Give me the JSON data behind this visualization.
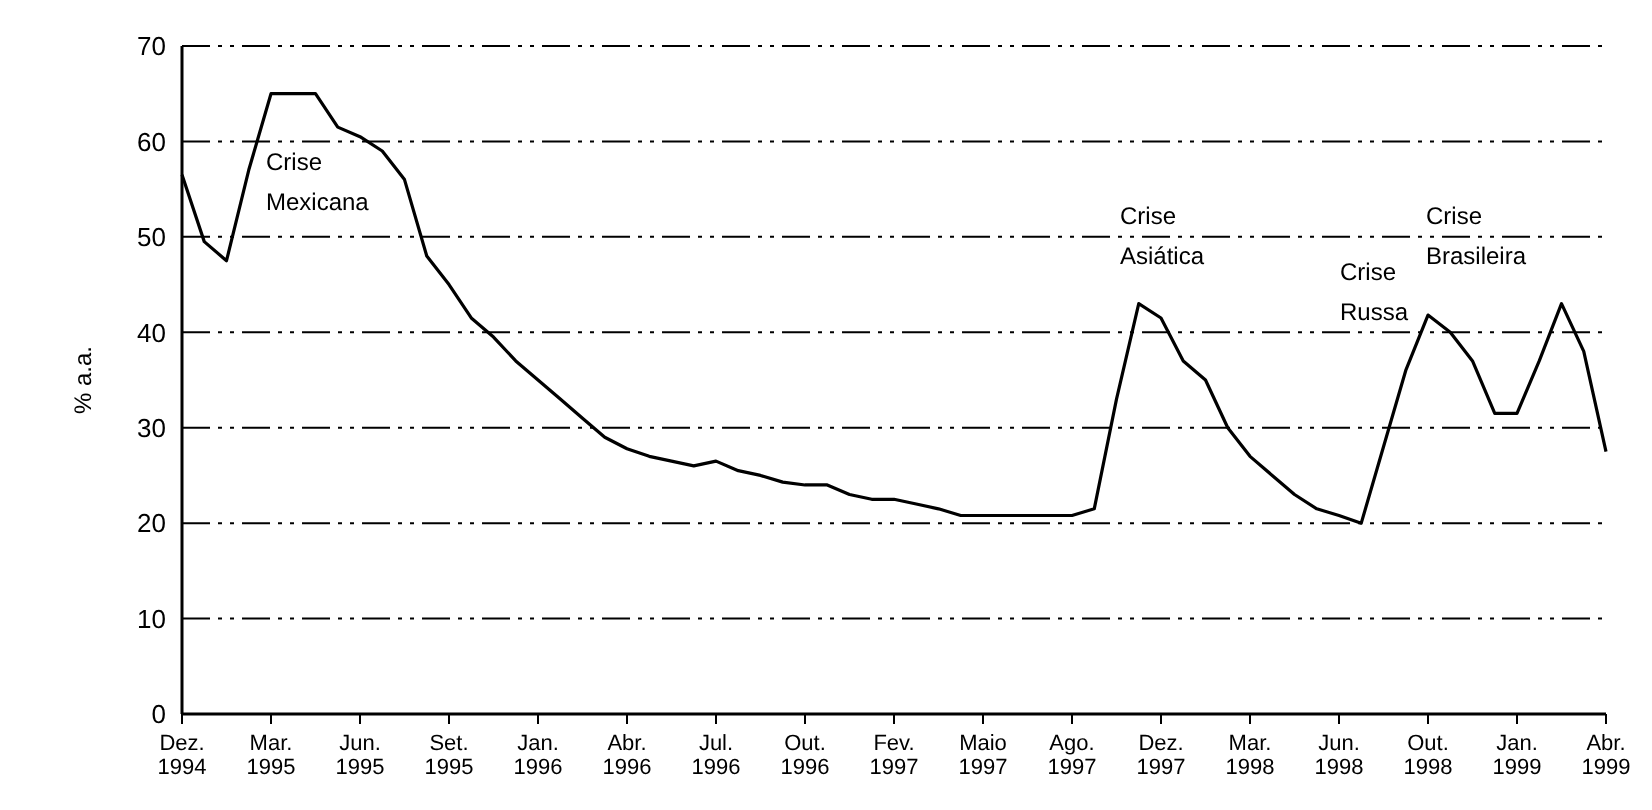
{
  "chart_data": {
    "type": "line",
    "ylabel": "% a.a.",
    "categories": [
      "Dez. 1994",
      null,
      null,
      null,
      "Mar. 1995",
      null,
      null,
      null,
      "Jun. 1995",
      null,
      null,
      null,
      "Set. 1995",
      null,
      null,
      null,
      "Jan. 1996",
      null,
      null,
      null,
      "Abr. 1996",
      null,
      null,
      null,
      "Jul. 1996",
      null,
      null,
      null,
      "Out. 1996",
      null,
      null,
      null,
      "Fev. 1997",
      null,
      null,
      null,
      "Maio 1997",
      null,
      null,
      null,
      "Ago. 1997",
      null,
      null,
      null,
      "Dez. 1997",
      null,
      null,
      null,
      "Mar. 1998",
      null,
      null,
      null,
      "Jun. 1998",
      null,
      null,
      null,
      "Out. 1998",
      null,
      null,
      null,
      "Jan. 1999",
      null,
      null,
      null,
      "Abr. 1999"
    ],
    "series": [
      {
        "color": "#000000",
        "values": [
          56.5,
          49.5,
          47.5,
          57,
          65,
          65,
          65,
          61.5,
          60.5,
          59,
          56,
          48,
          45,
          41.5,
          39.5,
          37,
          35,
          33,
          31,
          29,
          27.8,
          27,
          26.5,
          26,
          26.5,
          25.5,
          25,
          24.3,
          24,
          24,
          23,
          22.5,
          22.5,
          22,
          21.5,
          20.8,
          20.8,
          20.8,
          20.8,
          20.8,
          20.8,
          21.5,
          33,
          43,
          41.5,
          37,
          35,
          30,
          27,
          25,
          23,
          21.5,
          20.8,
          20,
          28,
          36,
          41.8,
          40,
          37,
          31.5,
          31.5,
          37,
          43,
          38,
          27.5
        ]
      }
    ],
    "ylim": [
      0,
      70
    ],
    "yticks": [
      0,
      10,
      20,
      30,
      40,
      50,
      60,
      70
    ],
    "grid": "y",
    "marker": "none",
    "line_style": "solid",
    "legend": false,
    "annotations": [
      "Crise\nMexicana",
      "Crise\nAsiática",
      "Crise\nRussa",
      "Crise\nBrasileira"
    ]
  }
}
